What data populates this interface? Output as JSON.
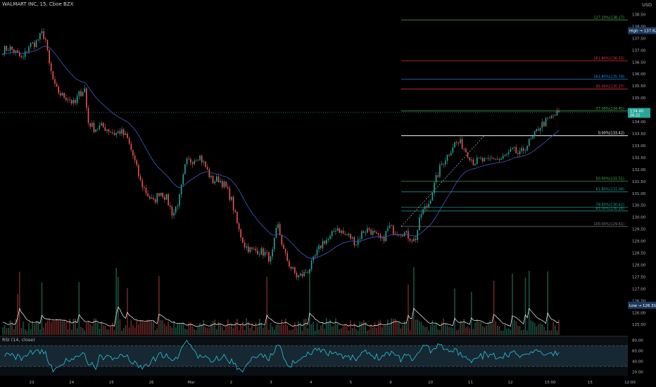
{
  "header": {
    "symbol_title": "WALMART INC, 15, Cboe BZX",
    "currency": "USD"
  },
  "rsi_panel": {
    "title": "RSI (14, close)"
  },
  "colors": {
    "background": "#000000",
    "up_candle": "#26a69a",
    "down_candle": "#ef5350",
    "vwap_line": "#3f51b5",
    "volume_avg": "#ffffff",
    "rsi_line": "#26c6da",
    "fib_green": "#4caf50",
    "fib_red": "#f23645",
    "fib_blue": "#2196f3",
    "fib_white": "#ffffff",
    "fib_gray": "#787b86",
    "price_badge": "#26a69a",
    "high_low_badge": "#1e3a5f"
  },
  "chart_data": {
    "type": "candlestick",
    "title": "WALMART INC, 15, Cboe BZX",
    "x_tick_labels": [
      "23",
      "24",
      "25",
      "26",
      "Mar",
      "2",
      "3",
      "4",
      "5",
      "9",
      "10",
      "11",
      "12",
      "15:00",
      "15",
      "12:00"
    ],
    "y_tick_labels": [
      "138.50",
      "138.00",
      "137.50",
      "137.00",
      "136.50",
      "136.00",
      "135.50",
      "135.00",
      "134.50",
      "134.00",
      "133.50",
      "133.00",
      "132.50",
      "132.00",
      "131.50",
      "131.00",
      "130.50",
      "130.00",
      "129.50",
      "129.00",
      "128.50",
      "128.00",
      "127.50",
      "127.00",
      "126.50",
      "126.00",
      "125.50"
    ],
    "ylim": [
      125.3,
      138.75
    ],
    "fib_levels": [
      {
        "label": "127.20%(138.27)",
        "value": 138.27,
        "color": "#4caf50"
      },
      {
        "label": "161.80%(136.55)",
        "value": 136.55,
        "color": "#f23645"
      },
      {
        "label": "161.80%(135.78)",
        "value": 135.78,
        "color": "#2196f3"
      },
      {
        "label": "95.00%(135.37)",
        "value": 135.37,
        "color": "#f23645"
      },
      {
        "label": "-27.00%(134.45)",
        "value": 134.45,
        "color": "#4caf50"
      },
      {
        "label": "0.00%(133.42)",
        "value": 133.42,
        "color": "#ffffff"
      },
      {
        "label": "50.00%(131.51)",
        "value": 131.51,
        "color": "#4caf50"
      },
      {
        "label": "61.80%(131.06)",
        "value": 131.06,
        "color": "#26a69a"
      },
      {
        "label": "78.60%(130.42)",
        "value": 130.42,
        "color": "#26a69a"
      },
      {
        "label": "83.00%(130.26)",
        "value": 130.26,
        "color": "#26a69a"
      },
      {
        "label": "100.00%(129.61)",
        "value": 129.61,
        "color": "#787b86"
      }
    ],
    "price_markers": [
      {
        "label": "High",
        "value": "137.82"
      },
      {
        "label": "Low",
        "value": "126.31"
      }
    ],
    "current_price": {
      "value": "134.40",
      "countdown": "06:32"
    },
    "rsi": {
      "title": "RSI (14, close)",
      "levels": [
        70,
        30
      ],
      "y_tick_labels": [
        "80.00",
        "60.00",
        "40.00",
        "20.00"
      ],
      "ylim": [
        15,
        85
      ]
    },
    "price_path": [
      [
        0,
        137.0
      ],
      [
        2,
        137.1
      ],
      [
        4,
        136.9
      ],
      [
        6,
        136.6
      ],
      [
        8,
        137.2
      ],
      [
        10,
        137.3
      ],
      [
        12,
        137.7
      ],
      [
        13,
        137.5
      ],
      [
        14,
        136.5
      ],
      [
        16,
        135.4
      ],
      [
        18,
        135.1
      ],
      [
        20,
        135.0
      ],
      [
        22,
        134.7
      ],
      [
        23,
        135.1
      ],
      [
        25,
        135.4
      ],
      [
        26,
        134.0
      ],
      [
        28,
        133.7
      ],
      [
        30,
        133.8
      ],
      [
        32,
        133.7
      ],
      [
        34,
        133.5
      ],
      [
        36,
        133.6
      ],
      [
        38,
        133.3
      ],
      [
        40,
        132.5
      ],
      [
        42,
        131.5
      ],
      [
        44,
        131.0
      ],
      [
        46,
        130.6
      ],
      [
        48,
        131.1
      ],
      [
        50,
        130.8
      ],
      [
        52,
        130.1
      ],
      [
        54,
        130.8
      ],
      [
        56,
        132.3
      ],
      [
        58,
        132.4
      ],
      [
        60,
        132.6
      ],
      [
        62,
        132.1
      ],
      [
        64,
        131.5
      ],
      [
        66,
        131.6
      ],
      [
        68,
        131.3
      ],
      [
        70,
        130.7
      ],
      [
        72,
        129.5
      ],
      [
        74,
        128.8
      ],
      [
        76,
        128.6
      ],
      [
        78,
        128.6
      ],
      [
        80,
        128.5
      ],
      [
        82,
        128.2
      ],
      [
        84,
        129.7
      ],
      [
        86,
        128.5
      ],
      [
        88,
        127.9
      ],
      [
        90,
        127.5
      ],
      [
        92,
        127.6
      ],
      [
        94,
        127.9
      ],
      [
        96,
        128.5
      ],
      [
        98,
        129.0
      ],
      [
        100,
        129.1
      ],
      [
        102,
        129.6
      ],
      [
        104,
        129.3
      ],
      [
        106,
        129.2
      ],
      [
        108,
        128.9
      ],
      [
        110,
        129.4
      ],
      [
        112,
        129.5
      ],
      [
        114,
        129.2
      ],
      [
        116,
        129.0
      ],
      [
        118,
        129.6
      ],
      [
        120,
        129.4
      ],
      [
        122,
        129.4
      ],
      [
        124,
        129.2
      ],
      [
        126,
        129.0
      ],
      [
        128,
        130.2
      ],
      [
        130,
        130.5
      ],
      [
        132,
        131.4
      ],
      [
        134,
        132.2
      ],
      [
        136,
        132.6
      ],
      [
        138,
        133.1
      ],
      [
        140,
        133.1
      ],
      [
        142,
        132.7
      ],
      [
        144,
        132.3
      ],
      [
        146,
        132.4
      ],
      [
        148,
        132.3
      ],
      [
        150,
        132.5
      ],
      [
        152,
        132.4
      ],
      [
        154,
        132.6
      ],
      [
        156,
        132.8
      ],
      [
        158,
        132.6
      ],
      [
        160,
        133.0
      ],
      [
        162,
        133.3
      ],
      [
        164,
        133.8
      ],
      [
        166,
        134.0
      ],
      [
        168,
        134.2
      ],
      [
        170,
        134.4
      ]
    ]
  }
}
